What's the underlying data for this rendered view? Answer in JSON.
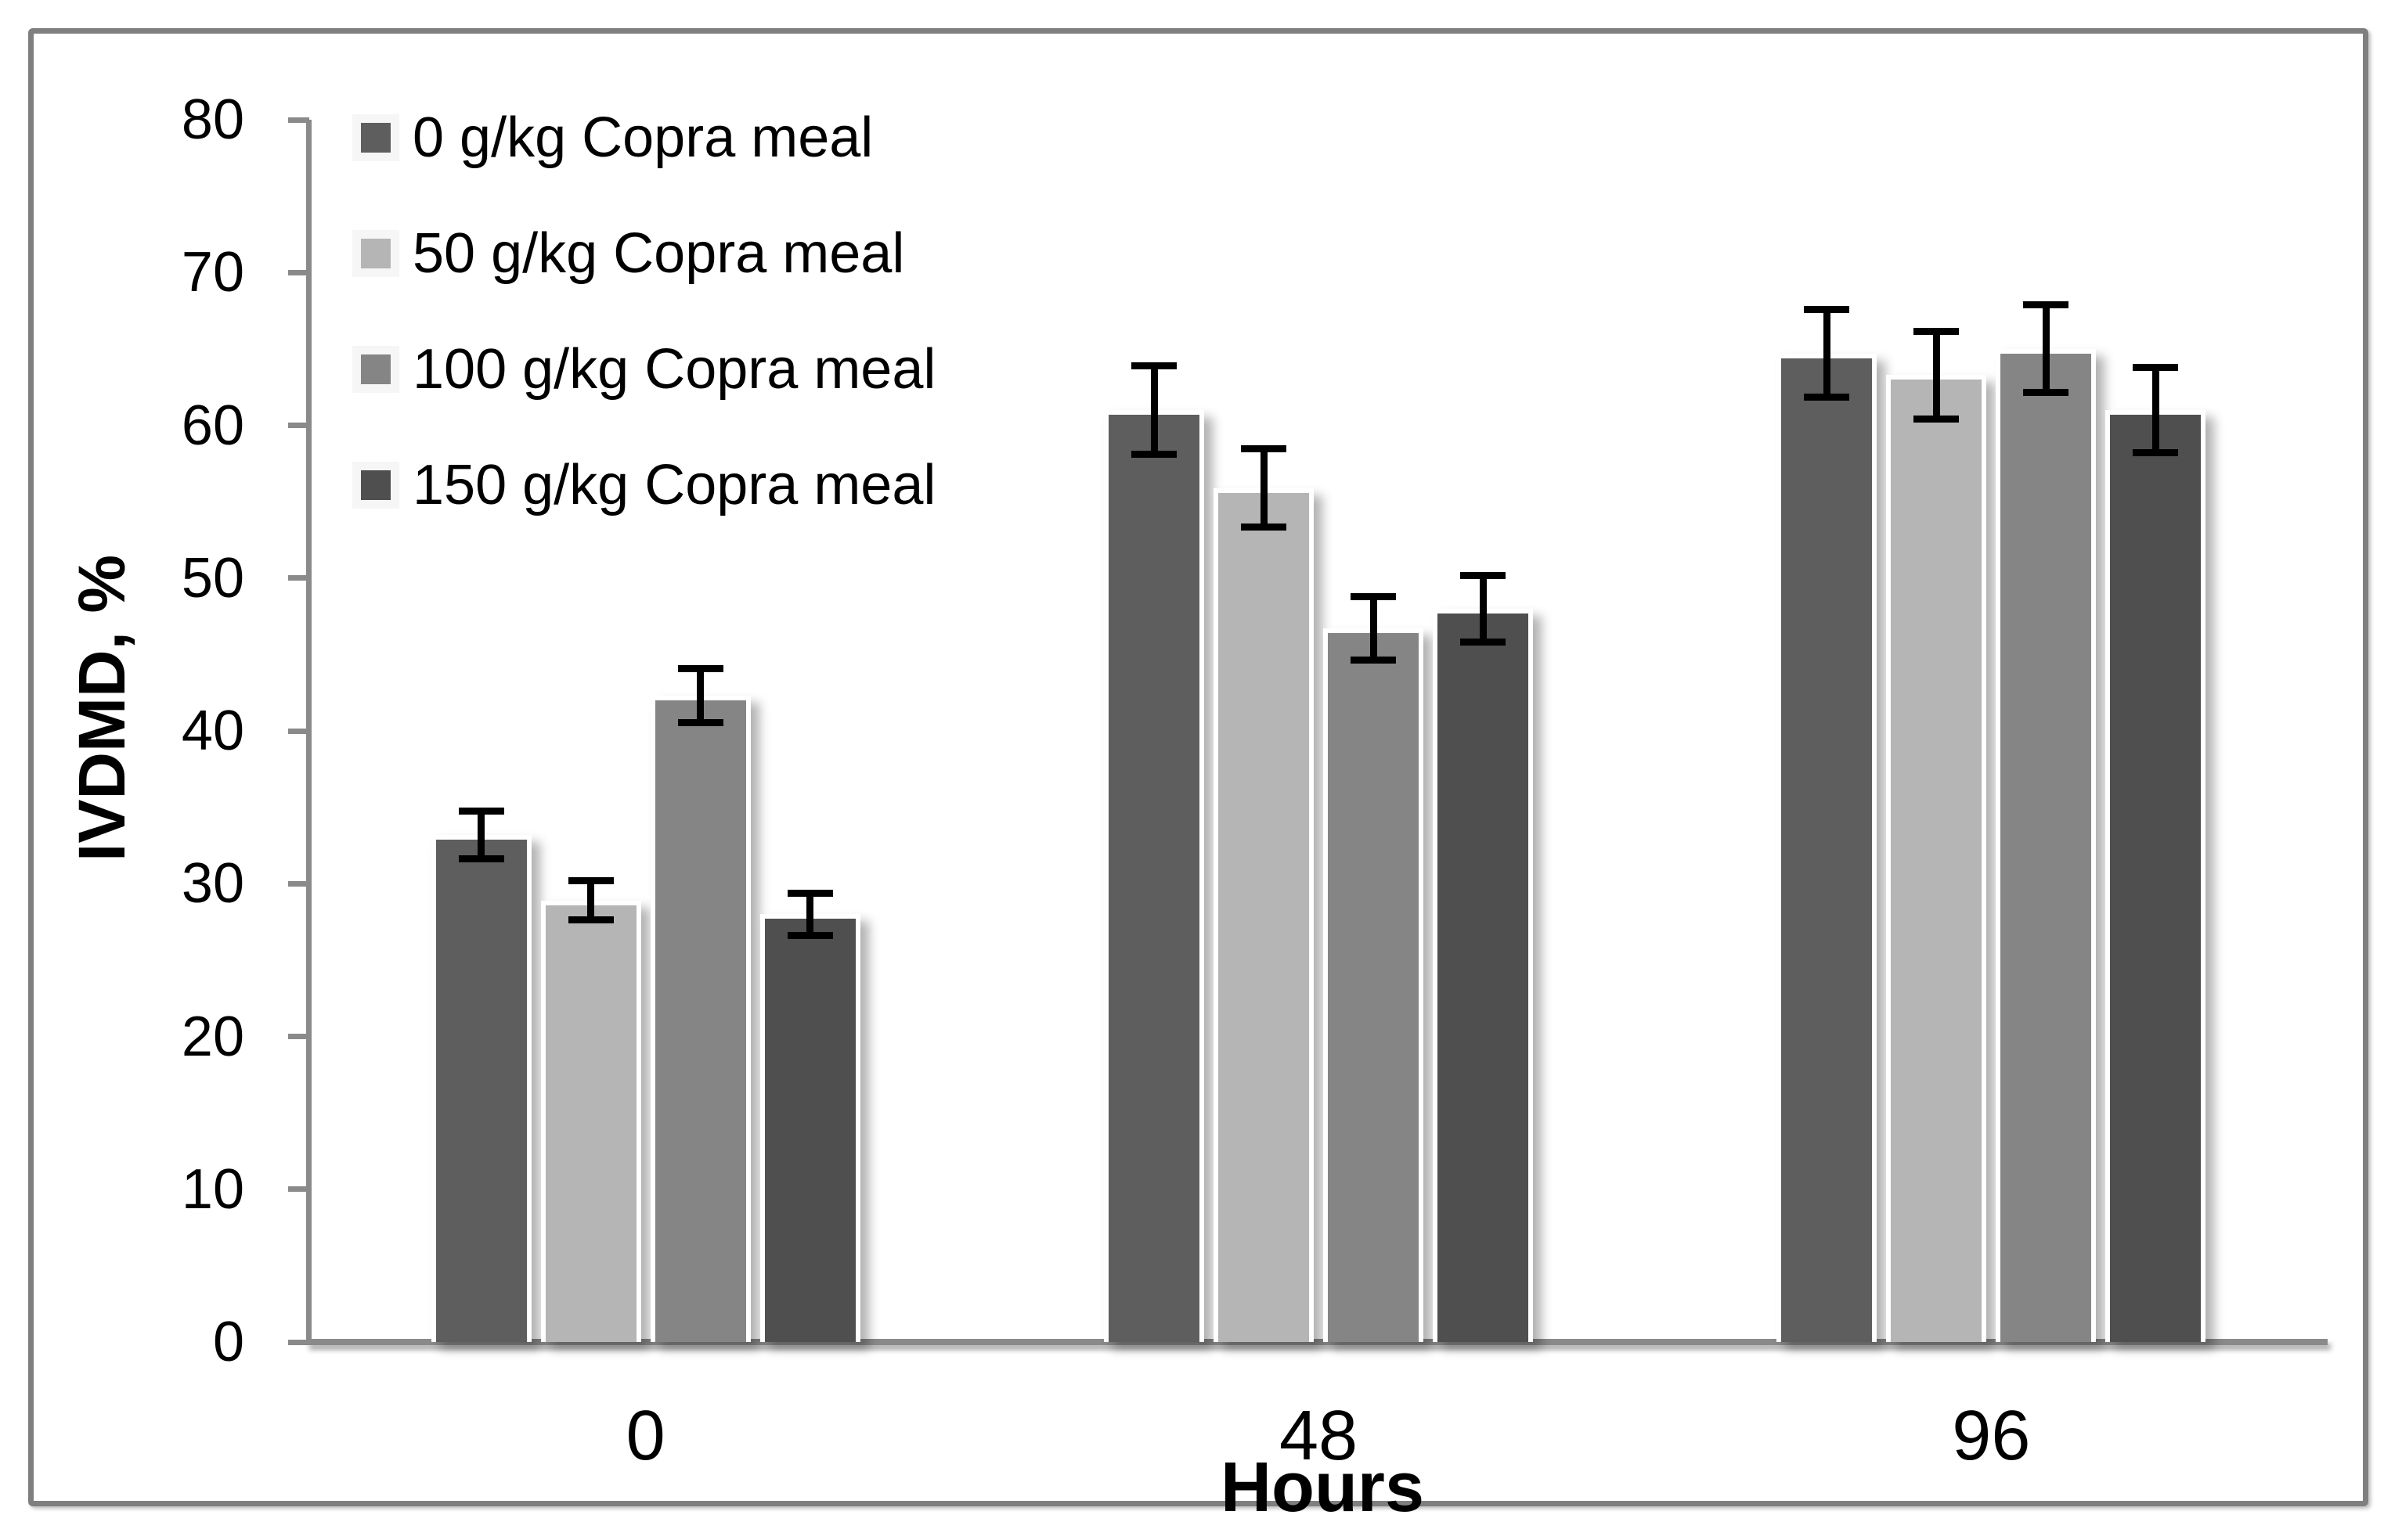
{
  "chart_data": {
    "type": "bar",
    "title": "",
    "categories": [
      "0",
      "48",
      "96"
    ],
    "series": [
      {
        "name": "0 g/kg Copra meal",
        "color": "#5e5e5e",
        "values": [
          33.2,
          61.0,
          64.7
        ],
        "errors": [
          1.8,
          3.1,
          3.1
        ]
      },
      {
        "name": "50 g/kg Copra meal",
        "color": "#b5b5b5",
        "values": [
          28.9,
          55.9,
          63.3
        ],
        "errors": [
          1.5,
          2.8,
          3.1
        ]
      },
      {
        "name": "100 g/kg Copra meal",
        "color": "#858585",
        "values": [
          42.3,
          46.7,
          65.0
        ],
        "errors": [
          2.0,
          2.3,
          3.1
        ]
      },
      {
        "name": "150 g/kg Copra meal",
        "color": "#4f4f4f",
        "values": [
          28.0,
          48.0,
          61.0
        ],
        "errors": [
          1.6,
          2.4,
          3.0
        ]
      }
    ],
    "xlabel": "Hours",
    "ylabel": "IVDMD, %",
    "ylim": [
      0,
      80
    ],
    "ytick_step": 10,
    "error_bars": true,
    "grid": false,
    "legend_position": "inside-top-left",
    "axis_color": "#8a8a8a",
    "frame_color": "#7f7f7f",
    "bar_edge_color": "#ffffff",
    "error_bar_color": "#000000"
  }
}
